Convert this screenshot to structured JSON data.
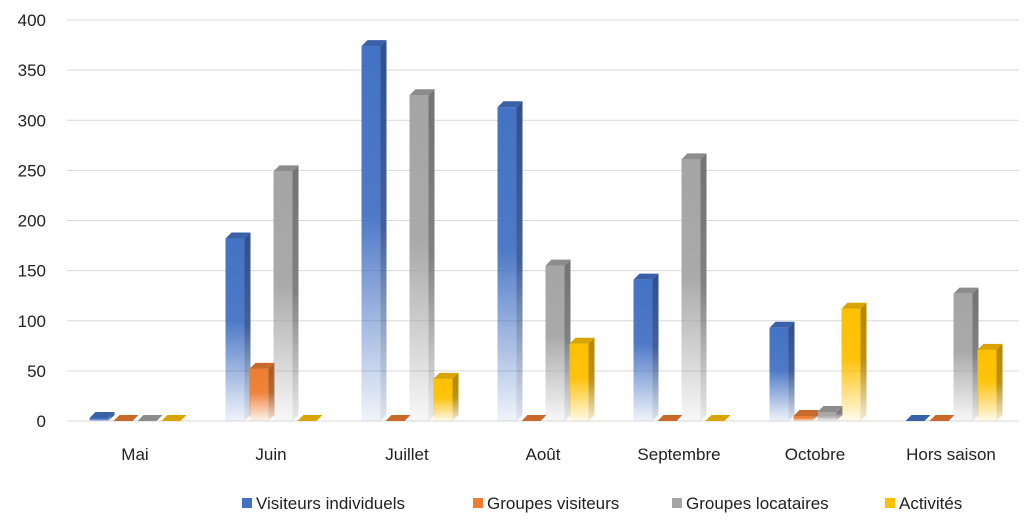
{
  "chart_data": {
    "type": "bar",
    "title": "",
    "xlabel": "",
    "ylabel": "",
    "ylim": [
      0,
      400
    ],
    "yticks": [
      0,
      50,
      100,
      150,
      200,
      250,
      300,
      350,
      400
    ],
    "grid": true,
    "legend_position": "bottom",
    "categories": [
      "Mai",
      "Juin",
      "Juillet",
      "Août",
      "Septembre",
      "Octobre",
      "Hors saison"
    ],
    "series": [
      {
        "name": "Visiteurs individuels",
        "color": "#4472C4",
        "values": [
          3,
          182,
          374,
          313,
          141,
          93,
          0
        ]
      },
      {
        "name": "Groupes visiteurs",
        "color": "#ED7D31",
        "values": [
          0,
          52,
          0,
          0,
          0,
          5,
          0
        ]
      },
      {
        "name": "Groupes locataires",
        "color": "#A5A5A5",
        "values": [
          0,
          249,
          325,
          155,
          261,
          9,
          127
        ]
      },
      {
        "name": "Activités",
        "color": "#FFC000",
        "values": [
          0,
          0,
          42,
          77,
          0,
          112,
          71
        ]
      }
    ]
  }
}
